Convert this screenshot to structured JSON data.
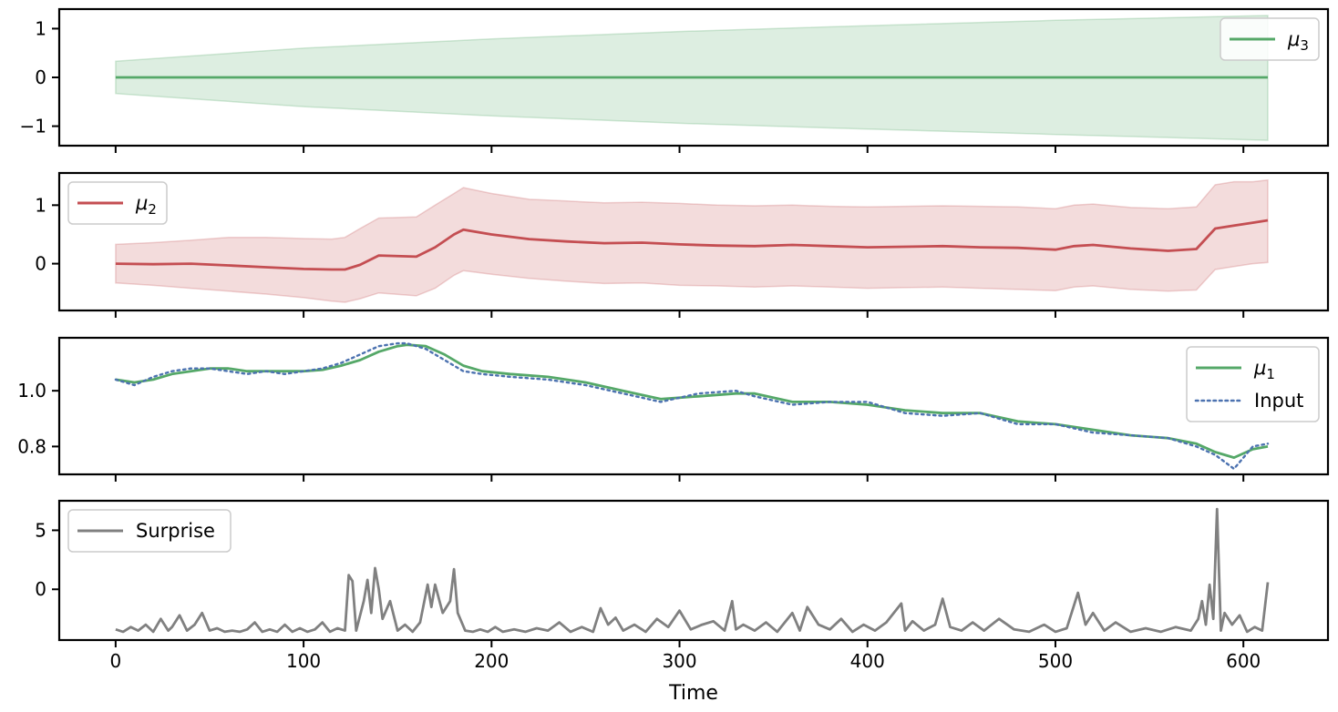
{
  "chart_data": [
    {
      "type": "line",
      "panel": "mu3",
      "ylim": [
        -1.4,
        1.4
      ],
      "yticks": [
        -1,
        0,
        1
      ],
      "ytick_labels": [
        "−1",
        "0",
        "1"
      ],
      "legend": {
        "entries": [
          {
            "label_main": "μ",
            "label_sub": "3",
            "color": "#55a868",
            "style": "solid"
          }
        ],
        "placement": "upper-right"
      },
      "series": [
        {
          "x": [
            0,
            100,
            200,
            300,
            400,
            500,
            613
          ],
          "y": [
            0,
            0,
            0,
            0,
            0,
            0,
            0
          ],
          "band_lower": [
            -0.33,
            -0.6,
            -0.79,
            -0.94,
            -1.06,
            -1.17,
            -1.29
          ],
          "band_upper": [
            0.33,
            0.6,
            0.79,
            0.94,
            1.06,
            1.17,
            1.27
          ],
          "color": "#55a868"
        }
      ],
      "xlim": [
        -30,
        645
      ]
    },
    {
      "type": "line",
      "panel": "mu2",
      "ylim": [
        -0.8,
        1.55
      ],
      "yticks": [
        0,
        1
      ],
      "ytick_labels": [
        "0",
        "1"
      ],
      "legend": {
        "entries": [
          {
            "label_main": "μ",
            "label_sub": "2",
            "color": "#c44e52",
            "style": "solid"
          }
        ],
        "placement": "upper-left"
      },
      "series": [
        {
          "x": [
            0,
            20,
            40,
            60,
            80,
            100,
            115,
            122,
            130,
            140,
            160,
            170,
            180,
            185,
            200,
            220,
            240,
            260,
            280,
            300,
            320,
            340,
            360,
            380,
            400,
            420,
            440,
            460,
            480,
            500,
            510,
            520,
            540,
            560,
            575,
            585,
            595,
            605,
            613
          ],
          "y": [
            0.0,
            -0.01,
            0.0,
            -0.03,
            -0.06,
            -0.09,
            -0.1,
            -0.1,
            -0.02,
            0.14,
            0.12,
            0.28,
            0.5,
            0.58,
            0.5,
            0.42,
            0.38,
            0.35,
            0.36,
            0.33,
            0.31,
            0.3,
            0.32,
            0.3,
            0.28,
            0.29,
            0.3,
            0.28,
            0.27,
            0.24,
            0.3,
            0.32,
            0.26,
            0.22,
            0.25,
            0.6,
            0.65,
            0.7,
            0.74
          ],
          "band_lower": [
            -0.33,
            -0.37,
            -0.42,
            -0.47,
            -0.52,
            -0.58,
            -0.64,
            -0.66,
            -0.6,
            -0.5,
            -0.55,
            -0.42,
            -0.2,
            -0.12,
            -0.18,
            -0.25,
            -0.3,
            -0.34,
            -0.33,
            -0.37,
            -0.38,
            -0.4,
            -0.38,
            -0.4,
            -0.42,
            -0.41,
            -0.4,
            -0.42,
            -0.44,
            -0.46,
            -0.4,
            -0.38,
            -0.44,
            -0.47,
            -0.45,
            -0.1,
            -0.05,
            0.0,
            0.02
          ],
          "band_upper": [
            0.33,
            0.36,
            0.4,
            0.45,
            0.45,
            0.43,
            0.42,
            0.45,
            0.6,
            0.78,
            0.8,
            1.0,
            1.2,
            1.3,
            1.2,
            1.1,
            1.07,
            1.04,
            1.05,
            1.03,
            1.0,
            0.99,
            1.0,
            0.98,
            0.97,
            0.98,
            0.99,
            0.98,
            0.97,
            0.94,
            1.0,
            1.02,
            0.96,
            0.94,
            0.97,
            1.35,
            1.4,
            1.4,
            1.43
          ],
          "color": "#c44e52"
        }
      ],
      "xlim": [
        -30,
        645
      ]
    },
    {
      "type": "line",
      "panel": "mu1",
      "ylim": [
        0.7,
        1.19
      ],
      "yticks": [
        0.8,
        1.0
      ],
      "ytick_labels": [
        "0.8",
        "1.0"
      ],
      "legend": {
        "entries": [
          {
            "label_main": "μ",
            "label_sub": "1",
            "color": "#55a868",
            "style": "solid"
          },
          {
            "label_main": "Input",
            "label_sub": "",
            "color": "#4c72b0",
            "style": "dotted"
          }
        ],
        "placement": "upper-right"
      },
      "series": [
        {
          "name": "mu1",
          "color": "#55a868",
          "x": [
            0,
            10,
            20,
            30,
            40,
            50,
            60,
            70,
            80,
            90,
            100,
            110,
            120,
            130,
            140,
            150,
            155,
            165,
            175,
            185,
            195,
            210,
            230,
            250,
            270,
            290,
            310,
            330,
            340,
            360,
            380,
            400,
            420,
            440,
            460,
            480,
            500,
            520,
            540,
            560,
            575,
            585,
            595,
            605,
            613
          ],
          "y": [
            1.04,
            1.03,
            1.04,
            1.06,
            1.07,
            1.08,
            1.08,
            1.07,
            1.07,
            1.07,
            1.07,
            1.075,
            1.09,
            1.11,
            1.14,
            1.16,
            1.165,
            1.16,
            1.13,
            1.09,
            1.07,
            1.06,
            1.05,
            1.03,
            1.0,
            0.97,
            0.98,
            0.99,
            0.99,
            0.96,
            0.96,
            0.95,
            0.93,
            0.92,
            0.92,
            0.89,
            0.88,
            0.86,
            0.84,
            0.83,
            0.81,
            0.78,
            0.76,
            0.79,
            0.8
          ]
        },
        {
          "name": "Input",
          "color": "#4c72b0",
          "x": [
            0,
            10,
            20,
            30,
            40,
            50,
            60,
            70,
            80,
            90,
            100,
            110,
            120,
            130,
            140,
            150,
            155,
            165,
            175,
            185,
            195,
            210,
            230,
            250,
            270,
            290,
            310,
            330,
            340,
            360,
            380,
            400,
            420,
            440,
            460,
            480,
            500,
            520,
            540,
            560,
            575,
            585,
            595,
            605,
            613
          ],
          "y": [
            1.04,
            1.02,
            1.05,
            1.07,
            1.08,
            1.08,
            1.07,
            1.06,
            1.07,
            1.06,
            1.07,
            1.08,
            1.1,
            1.13,
            1.16,
            1.17,
            1.17,
            1.15,
            1.11,
            1.07,
            1.06,
            1.05,
            1.04,
            1.02,
            0.99,
            0.96,
            0.99,
            1.0,
            0.98,
            0.95,
            0.96,
            0.96,
            0.92,
            0.91,
            0.92,
            0.88,
            0.88,
            0.85,
            0.84,
            0.83,
            0.8,
            0.77,
            0.72,
            0.8,
            0.81
          ]
        }
      ],
      "xlim": [
        -30,
        645
      ]
    },
    {
      "type": "line",
      "panel": "surprise",
      "ylim": [
        -4.3,
        7.5
      ],
      "yticks": [
        0,
        5
      ],
      "ytick_labels": [
        "0",
        "5"
      ],
      "legend": {
        "entries": [
          {
            "label_main": "Surprise",
            "label_sub": "",
            "color": "#808080",
            "style": "solid"
          }
        ],
        "placement": "upper-left"
      },
      "series": [
        {
          "name": "Surprise",
          "color": "#808080",
          "x": [
            0,
            4,
            8,
            12,
            16,
            20,
            24,
            28,
            30,
            34,
            38,
            42,
            46,
            50,
            54,
            58,
            62,
            66,
            70,
            74,
            78,
            82,
            86,
            90,
            94,
            98,
            102,
            106,
            110,
            114,
            118,
            122,
            124,
            126,
            128,
            132,
            134,
            136,
            138,
            140,
            142,
            146,
            150,
            154,
            158,
            162,
            166,
            168,
            170,
            174,
            178,
            180,
            182,
            186,
            190,
            194,
            198,
            202,
            206,
            212,
            218,
            224,
            230,
            236,
            242,
            248,
            254,
            258,
            262,
            266,
            270,
            276,
            282,
            288,
            294,
            300,
            306,
            312,
            318,
            324,
            328,
            330,
            334,
            340,
            346,
            352,
            360,
            364,
            368,
            374,
            380,
            386,
            392,
            398,
            404,
            410,
            418,
            420,
            424,
            430,
            436,
            440,
            444,
            450,
            456,
            462,
            470,
            478,
            486,
            494,
            500,
            506,
            512,
            516,
            520,
            526,
            532,
            540,
            548,
            556,
            564,
            572,
            576,
            578,
            580,
            582,
            584,
            586,
            588,
            590,
            594,
            598,
            602,
            606,
            610,
            613
          ],
          "y": [
            -3.4,
            -3.6,
            -3.2,
            -3.5,
            -3.0,
            -3.6,
            -2.5,
            -3.5,
            -3.2,
            -2.2,
            -3.5,
            -3.0,
            -2.0,
            -3.5,
            -3.3,
            -3.6,
            -3.5,
            -3.6,
            -3.4,
            -2.8,
            -3.6,
            -3.4,
            -3.6,
            -3.0,
            -3.6,
            -3.3,
            -3.6,
            -3.4,
            -2.8,
            -3.6,
            -3.3,
            -3.5,
            1.2,
            0.7,
            -3.5,
            -1.0,
            0.8,
            -2.0,
            1.8,
            0.0,
            -2.5,
            -1.0,
            -3.5,
            -3.0,
            -3.6,
            -2.8,
            0.4,
            -1.5,
            0.4,
            -2.0,
            -1.0,
            1.7,
            -2.0,
            -3.5,
            -3.6,
            -3.4,
            -3.6,
            -3.2,
            -3.6,
            -3.4,
            -3.6,
            -3.3,
            -3.5,
            -2.8,
            -3.6,
            -3.2,
            -3.6,
            -1.6,
            -3.0,
            -2.4,
            -3.5,
            -3.0,
            -3.6,
            -2.5,
            -3.2,
            -1.8,
            -3.4,
            -3.0,
            -2.7,
            -3.5,
            -1.0,
            -3.4,
            -3.0,
            -3.5,
            -2.8,
            -3.6,
            -2.0,
            -3.5,
            -1.5,
            -3.0,
            -3.4,
            -2.5,
            -3.6,
            -3.0,
            -3.5,
            -2.8,
            -1.2,
            -3.5,
            -2.7,
            -3.5,
            -3.0,
            -0.8,
            -3.2,
            -3.5,
            -2.8,
            -3.5,
            -2.5,
            -3.4,
            -3.6,
            -3.0,
            -3.6,
            -3.3,
            -0.3,
            -3.0,
            -2.0,
            -3.5,
            -2.8,
            -3.6,
            -3.3,
            -3.6,
            -3.2,
            -3.5,
            -2.5,
            -1.0,
            -3.0,
            0.4,
            -2.5,
            6.8,
            -3.5,
            -2.0,
            -3.0,
            -2.2,
            -3.6,
            -3.2,
            -3.5,
            0.6
          ]
        }
      ],
      "xlim": [
        -30,
        645
      ]
    }
  ],
  "xaxis": {
    "ticks": [
      0,
      100,
      200,
      300,
      400,
      500,
      600
    ],
    "tick_labels": [
      "0",
      "100",
      "200",
      "300",
      "400",
      "500",
      "600"
    ],
    "label": "Time"
  }
}
